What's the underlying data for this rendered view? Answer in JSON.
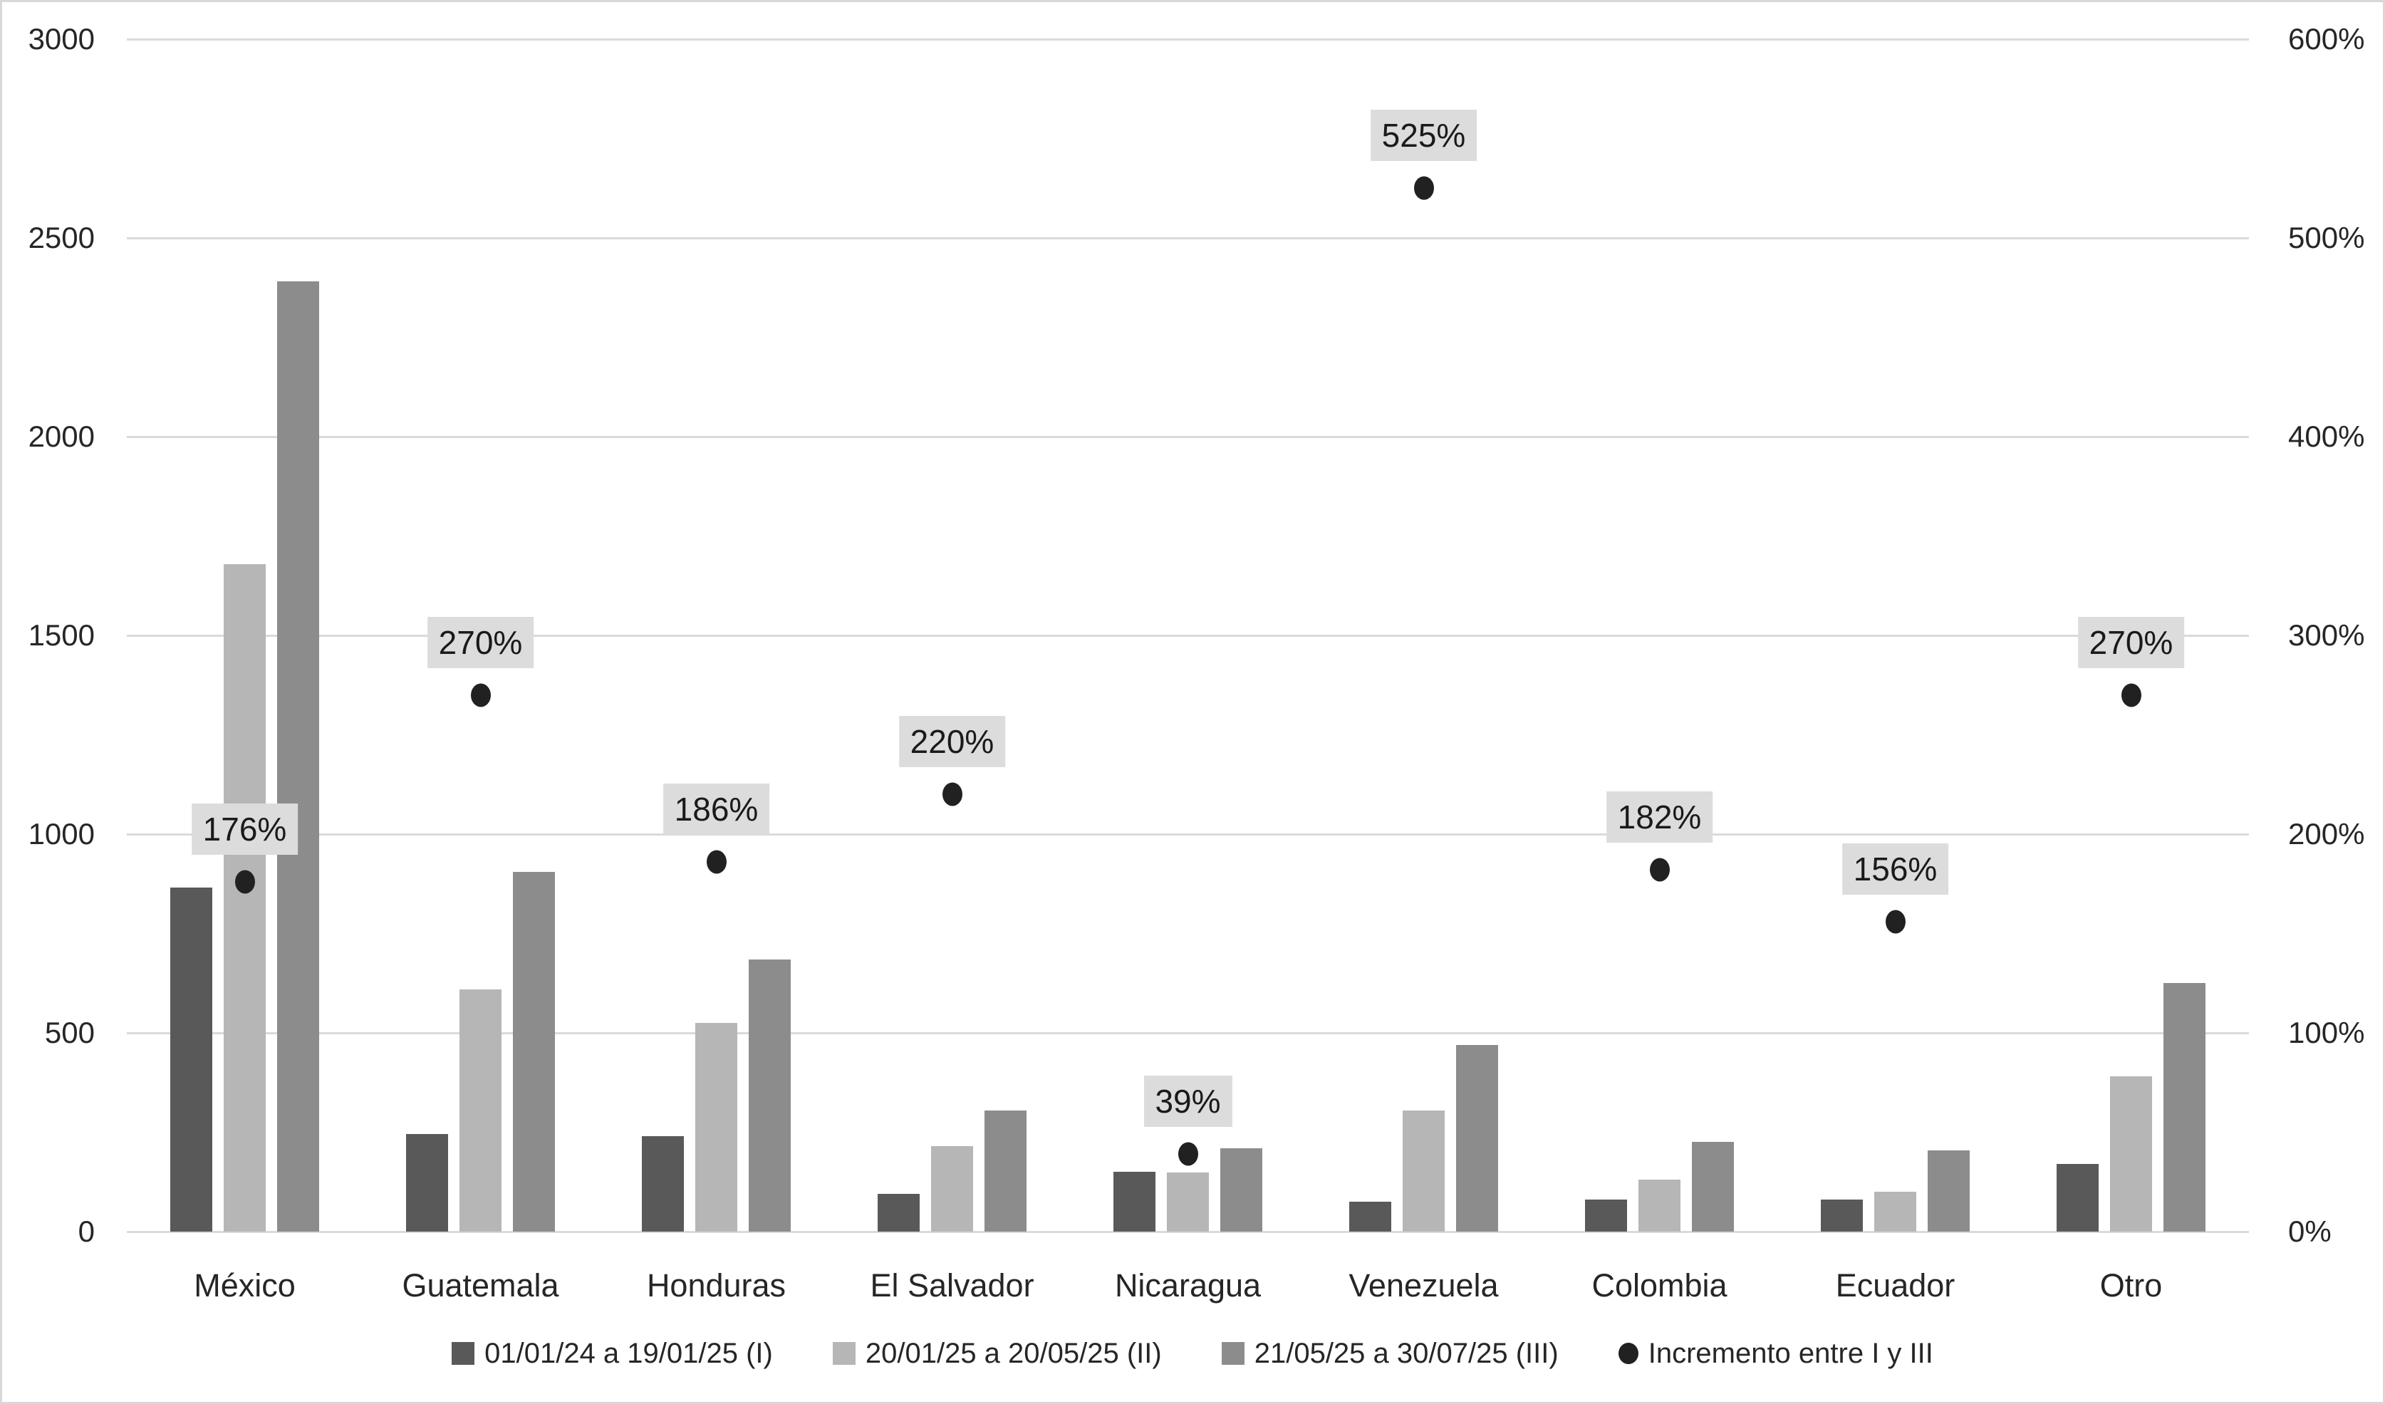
{
  "chart_data": {
    "type": "bar",
    "subtype": "grouped-bars-with-scatter-overlay",
    "categories": [
      "México",
      "Guatemala",
      "Honduras",
      "El Salvador",
      "Nicaragua",
      "Venezuela",
      "Colombia",
      "Ecuador",
      "Otro"
    ],
    "series": [
      {
        "name": "01/01/24 a 19/01/25 (I)",
        "color": "#595959",
        "values": [
          865,
          245,
          240,
          95,
          150,
          75,
          80,
          80,
          170
        ]
      },
      {
        "name": "20/01/25 a 20/05/25 (II)",
        "color": "#b6b6b6",
        "values": [
          1680,
          610,
          525,
          215,
          148,
          305,
          130,
          100,
          390
        ]
      },
      {
        "name": "21/05/25 a 30/07/25 (III)",
        "color": "#8c8c8c",
        "values": [
          2390,
          905,
          685,
          305,
          209,
          470,
          225,
          205,
          625
        ]
      }
    ],
    "scatter_series": {
      "name": "Incremento entre I y III",
      "axis": "right",
      "color": "#212121",
      "values_pct": [
        176,
        270,
        186,
        220,
        39,
        525,
        182,
        156,
        270
      ],
      "labels": [
        "176%",
        "270%",
        "186%",
        "220%",
        "39%",
        "525%",
        "182%",
        "156%",
        "270%"
      ],
      "label_bg": "#dcdcdc"
    },
    "left_axis": {
      "min": 0,
      "max": 3000,
      "step": 500,
      "ticks": [
        "0",
        "500",
        "1000",
        "1500",
        "2000",
        "2500",
        "3000"
      ]
    },
    "right_axis": {
      "min_pct": 0,
      "max_pct": 600,
      "step_pct": 100,
      "ticks": [
        "0%",
        "100%",
        "200%",
        "300%",
        "400%",
        "500%",
        "600%"
      ]
    },
    "title": "",
    "xlabel": "",
    "ylabel": "",
    "grid": true,
    "legend_position": "bottom"
  },
  "colors": {
    "background": "#ffffff",
    "outer_border": "#d8d8d8",
    "gridline": "#dadada",
    "text": "#262626",
    "dot": "#212121",
    "label_box_bg": "#dcdcdc"
  }
}
